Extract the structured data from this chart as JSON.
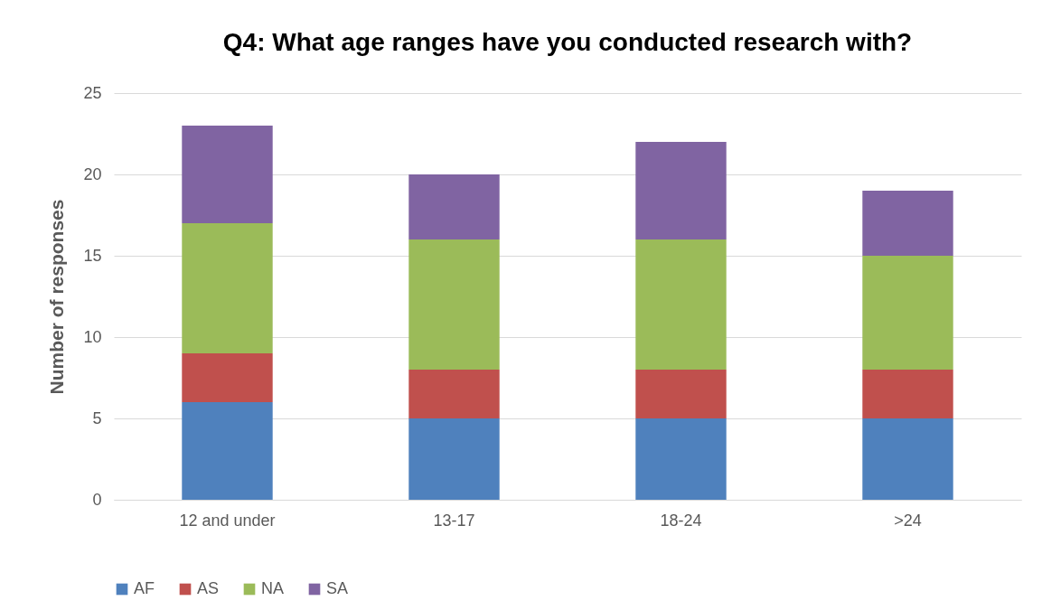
{
  "chart_data": {
    "type": "bar",
    "title": "Q4: What age ranges have you conducted research with?",
    "ylabel": "Number of responses",
    "categories": [
      "12 and under",
      "13-17",
      "18-24",
      ">24"
    ],
    "series": [
      {
        "name": "AF",
        "color": "#4f81bd",
        "values": [
          6,
          5,
          5,
          5
        ]
      },
      {
        "name": "AS",
        "color": "#c0504d",
        "values": [
          3,
          3,
          3,
          3
        ]
      },
      {
        "name": "NA",
        "color": "#9bbb59",
        "values": [
          8,
          8,
          8,
          7
        ]
      },
      {
        "name": "SA",
        "color": "#8064a2",
        "values": [
          6,
          4,
          6,
          4
        ]
      }
    ],
    "stacked": true,
    "ylim": [
      0,
      25
    ],
    "yticks": [
      0,
      5,
      10,
      15,
      20,
      25
    ],
    "grid": "y",
    "legend": "bottom"
  }
}
